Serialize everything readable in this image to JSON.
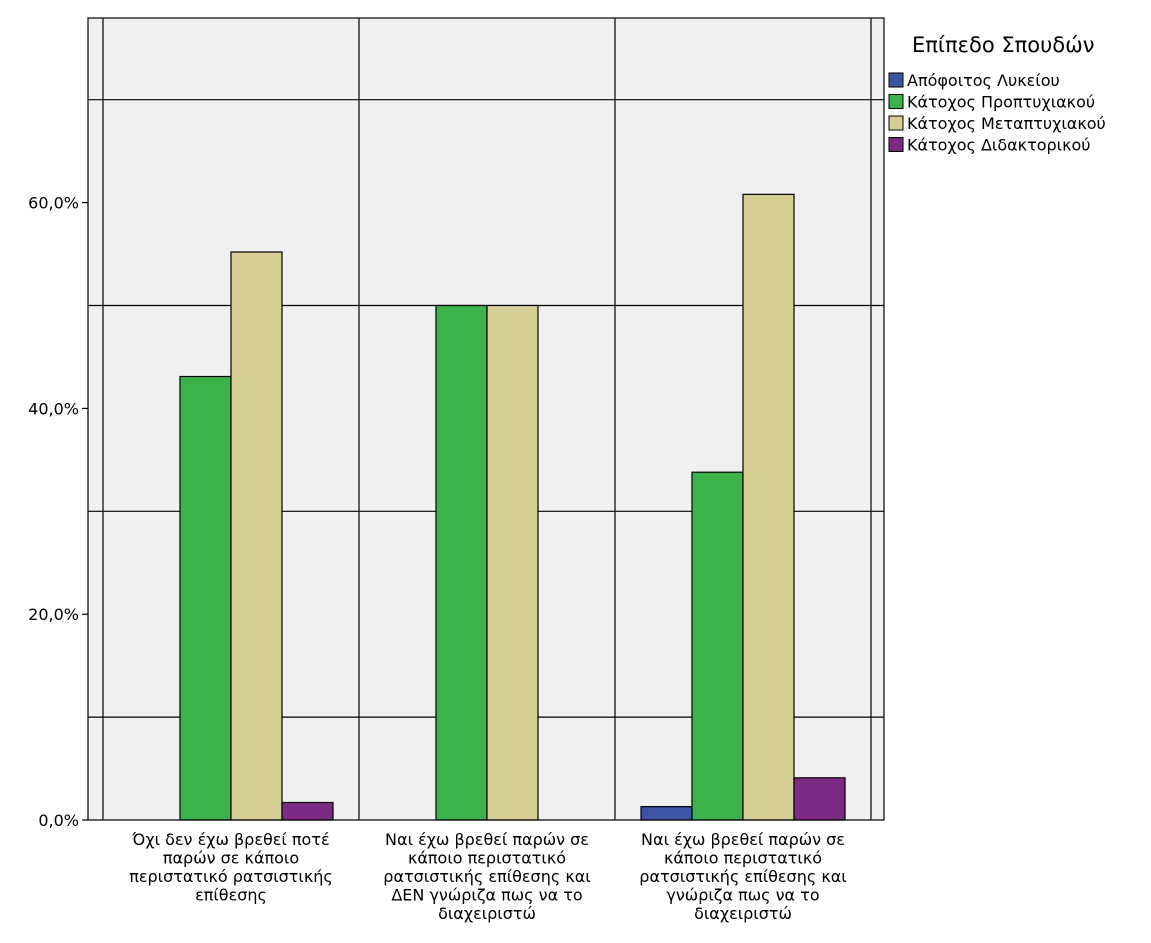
{
  "chart_data": {
    "type": "bar",
    "title": "",
    "xlabel": "",
    "ylabel": "",
    "ylim": [
      0,
      78.5
    ],
    "y_ticks": [
      0,
      20,
      40,
      60
    ],
    "y_tick_labels": [
      "0,0%",
      "20,0%",
      "40,0%",
      "60,0%"
    ],
    "minor_gridlines": [
      10,
      30,
      50,
      70
    ],
    "grid": true,
    "legend_title": "Επίπεδο Σπουδών",
    "legend_position": "right",
    "categories": [
      [
        "Όχι δεν έχω βρεθεί ποτέ",
        "παρών σε κάποιο",
        "περιστατικό ρατσιστικής",
        "επίθεσης"
      ],
      [
        "Ναι έχω βρεθεί παρών σε",
        "κάποιο περιστατικό",
        "ρατσιστικής επίθεσης και",
        "ΔΕΝ γνώριζα πως να το",
        "διαχειριστώ"
      ],
      [
        "Ναι έχω βρεθεί παρών σε",
        "κάποιο περιστατικό",
        "ρατσιστικής επίθεσης και",
        "γνώριζα πως να το",
        "διαχειριστώ"
      ]
    ],
    "series": [
      {
        "name": "Απόφοιτος Λυκείου",
        "color": "#3c54a4",
        "values": [
          0,
          0,
          1.3
        ]
      },
      {
        "name": "Κάτοχος Προπτυχιακού",
        "color": "#3cb34a",
        "values": [
          43.1,
          50.0,
          33.8
        ]
      },
      {
        "name": "Κάτοχος Μεταπτυχιακού",
        "color": "#d6cf95",
        "values": [
          55.2,
          50.0,
          60.8
        ]
      },
      {
        "name": "Κάτοχος Διδακτορικού",
        "color": "#7c2a83",
        "values": [
          1.7,
          0,
          4.1
        ]
      }
    ]
  }
}
